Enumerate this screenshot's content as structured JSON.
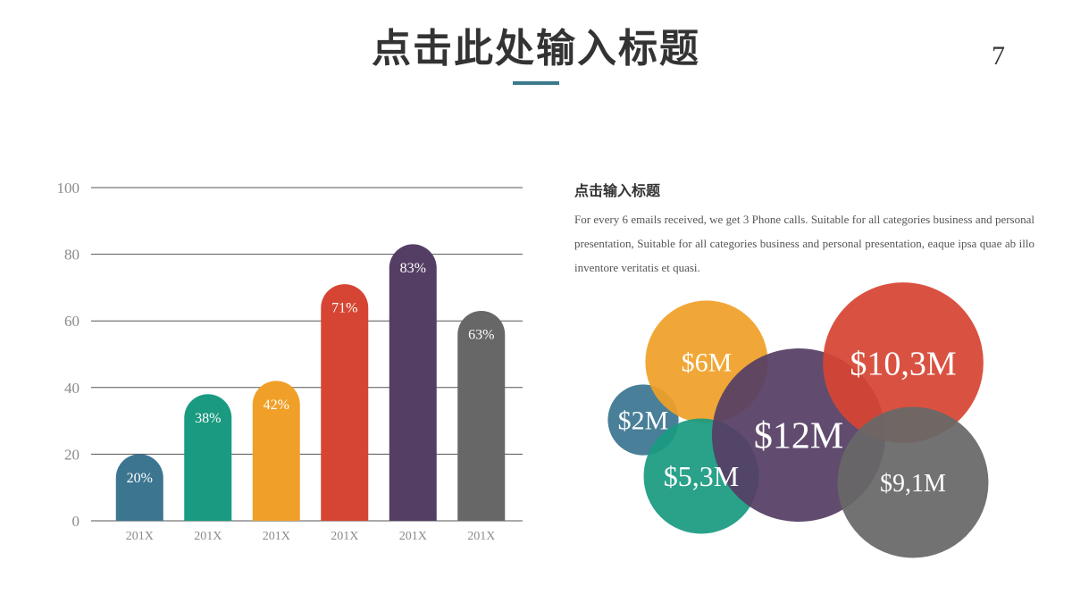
{
  "header": {
    "title": "点击此处输入标题",
    "page_number": "7"
  },
  "colors": {
    "accent": "#3b7a8c",
    "blue": "#3b7590",
    "teal": "#1a9a80",
    "orange": "#f0a028",
    "red": "#d64533",
    "purple": "#553e64",
    "gray": "#676767"
  },
  "text_block": {
    "title": "点击输入标题",
    "body": "For every 6 emails received, we get 3 Phone calls. Suitable for all categories business and personal presentation, Suitable for all categories business and personal presentation, eaque ipsa quae ab illo inventore veritatis et quasi."
  },
  "chart_data": [
    {
      "type": "bar",
      "categories": [
        "201X",
        "201X",
        "201X",
        "201X",
        "201X",
        "201X"
      ],
      "values": [
        20,
        38,
        42,
        71,
        83,
        63
      ],
      "data_labels": [
        "20%",
        "38%",
        "42%",
        "71%",
        "83%",
        "63%"
      ],
      "colors": [
        "#3b7590",
        "#1a9a80",
        "#f0a028",
        "#d64533",
        "#553e64",
        "#676767"
      ],
      "yticks": [
        0,
        20,
        40,
        60,
        80,
        100
      ],
      "ylim": [
        0,
        100
      ],
      "grid": true
    },
    {
      "type": "bubble",
      "labels": [
        "$2M",
        "$6M",
        "$5,3M",
        "$12M",
        "$10,3M",
        "$9,1M"
      ],
      "values": [
        2,
        6,
        5.3,
        12,
        10.3,
        9.1
      ],
      "colors": [
        "#3b7590",
        "#f0a028",
        "#1a9a80",
        "#553e64",
        "#d64533",
        "#676767"
      ]
    }
  ]
}
